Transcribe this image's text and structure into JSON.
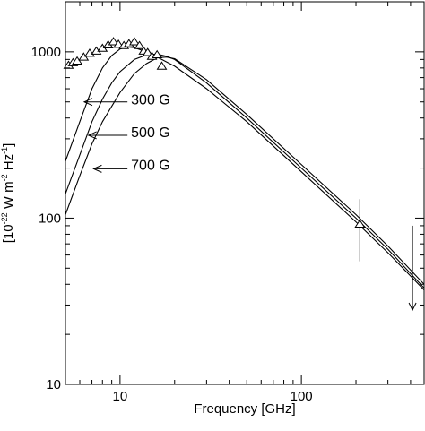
{
  "chart_data": {
    "type": "line",
    "title": "",
    "xlabel": "Frequency [GHz]",
    "ylabel_parts": {
      "prefix": "[10",
      "exp1": "-22",
      "mid1": " W m",
      "exp2": "-2",
      "mid2": " Hz",
      "exp3": "-1",
      "suffix": "]"
    },
    "x_scale": "log",
    "y_scale": "log",
    "xlim": [
      5,
      475
    ],
    "ylim": [
      10,
      2000
    ],
    "x_ticks": [
      {
        "value": 10,
        "label": "10"
      },
      {
        "value": 100,
        "label": "100"
      }
    ],
    "y_ticks": [
      {
        "value": 10,
        "label": "10"
      },
      {
        "value": 100,
        "label": "100"
      },
      {
        "value": 1000,
        "label": "1000"
      }
    ],
    "series": [
      {
        "name": "300 G",
        "points": [
          [
            5,
            220
          ],
          [
            6,
            380
          ],
          [
            7,
            600
          ],
          [
            8,
            800
          ],
          [
            9,
            950
          ],
          [
            10,
            1040
          ],
          [
            11,
            1070
          ],
          [
            12,
            1060
          ],
          [
            14,
            1000
          ],
          [
            17,
            900
          ],
          [
            20,
            820
          ],
          [
            30,
            600
          ],
          [
            50,
            380
          ],
          [
            100,
            190
          ],
          [
            200,
            95
          ],
          [
            300,
            62
          ],
          [
            475,
            37
          ]
        ]
      },
      {
        "name": "500 G",
        "points": [
          [
            5,
            140
          ],
          [
            6,
            240
          ],
          [
            7,
            380
          ],
          [
            8,
            520
          ],
          [
            9,
            650
          ],
          [
            10,
            760
          ],
          [
            12,
            900
          ],
          [
            14,
            960
          ],
          [
            16,
            970
          ],
          [
            18,
            940
          ],
          [
            20,
            900
          ],
          [
            30,
            650
          ],
          [
            50,
            400
          ],
          [
            100,
            200
          ],
          [
            200,
            100
          ],
          [
            300,
            65
          ],
          [
            475,
            38
          ]
        ]
      },
      {
        "name": "700 G",
        "points": [
          [
            5,
            105
          ],
          [
            6,
            180
          ],
          [
            7,
            280
          ],
          [
            8,
            380
          ],
          [
            9,
            470
          ],
          [
            10,
            570
          ],
          [
            12,
            740
          ],
          [
            14,
            850
          ],
          [
            16,
            920
          ],
          [
            18,
            930
          ],
          [
            20,
            910
          ],
          [
            30,
            680
          ],
          [
            50,
            420
          ],
          [
            100,
            210
          ],
          [
            200,
            105
          ],
          [
            300,
            68
          ],
          [
            475,
            40
          ]
        ]
      }
    ],
    "observations": {
      "marker": "triangle",
      "points": [
        [
          5.2,
          830
        ],
        [
          5.5,
          860
        ],
        [
          5.8,
          880
        ],
        [
          6.3,
          930
        ],
        [
          6.8,
          980
        ],
        [
          7.4,
          1010
        ],
        [
          8,
          1050
        ],
        [
          8.6,
          1100
        ],
        [
          9.2,
          1150
        ],
        [
          9.8,
          1110
        ],
        [
          10.5,
          1090
        ],
        [
          11.2,
          1120
        ],
        [
          12,
          1150
        ],
        [
          12.8,
          1090
        ],
        [
          13.5,
          1010
        ],
        [
          14.2,
          990
        ],
        [
          15,
          940
        ],
        [
          16,
          960
        ],
        [
          17,
          820
        ]
      ],
      "error_point": {
        "x": 210,
        "y": 92,
        "y_low": 55,
        "y_high": 130
      },
      "upper_limit": {
        "x": 410,
        "y_top": 90,
        "y_bottom": 28
      }
    },
    "annotations": [
      {
        "label": "300 G",
        "text_at": [
          11.5,
          520
        ],
        "arrow_to": [
          6.35,
          500
        ]
      },
      {
        "label": "500 G",
        "text_at": [
          11.5,
          330
        ],
        "arrow_to": [
          6.7,
          315
        ]
      },
      {
        "label": "700 G",
        "text_at": [
          11.5,
          210
        ],
        "arrow_to": [
          7.15,
          198
        ]
      }
    ]
  }
}
